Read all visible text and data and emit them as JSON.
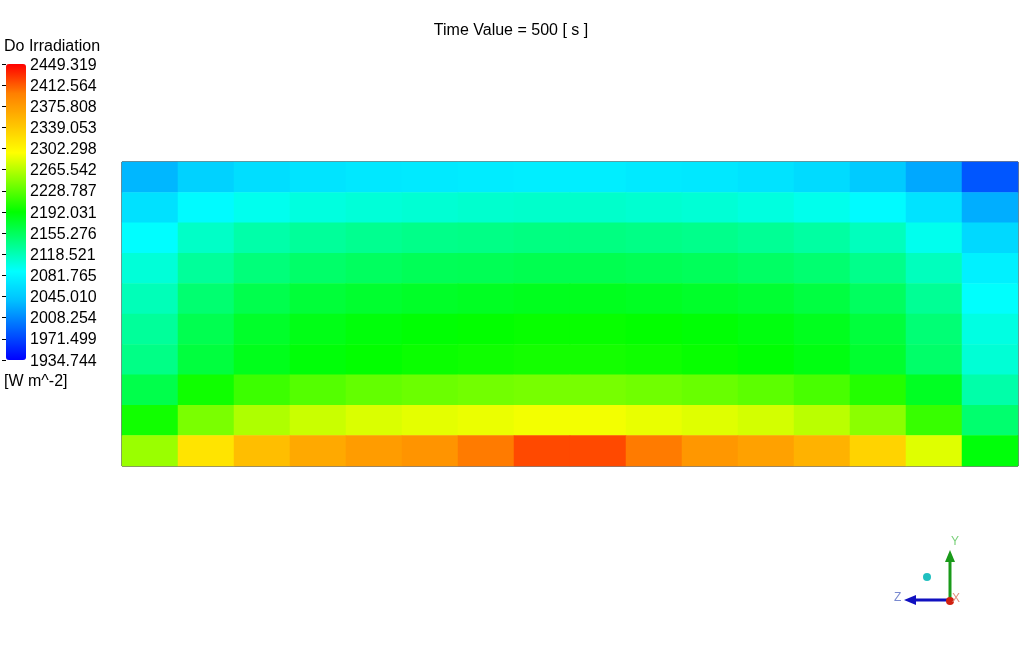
{
  "chart_data": {
    "type": "heatmap",
    "title": "Time Value = 500 [ s ]",
    "clabel": "Do Irradiation",
    "annotations": [
      "[W m^-2]",
      "Y",
      "Z",
      "X"
    ],
    "grid": false,
    "categories": [
      null,
      null,
      null,
      null,
      null,
      null,
      null,
      null,
      null,
      null,
      null,
      null,
      null,
      null,
      null,
      null
    ],
    "y_categories": [
      null,
      null,
      null,
      null,
      null,
      null,
      null,
      null,
      null,
      null
    ],
    "cells": [
      [
        2033,
        2052,
        2062,
        2067,
        2070,
        2072,
        2074,
        2075,
        2075,
        2072,
        2070,
        2066,
        2060,
        2047,
        2025,
        1981
      ],
      [
        2065,
        2086,
        2096,
        2102,
        2105,
        2107,
        2109,
        2110,
        2110,
        2108,
        2106,
        2102,
        2097,
        2086,
        2066,
        2028
      ],
      [
        2088,
        2112,
        2124,
        2130,
        2134,
        2137,
        2138,
        2140,
        2140,
        2138,
        2136,
        2132,
        2127,
        2116,
        2096,
        2058
      ],
      [
        2105,
        2130,
        2143,
        2150,
        2154,
        2157,
        2158,
        2160,
        2160,
        2158,
        2156,
        2152,
        2147,
        2136,
        2116,
        2078
      ],
      [
        2118,
        2147,
        2161,
        2169,
        2173,
        2176,
        2178,
        2180,
        2180,
        2178,
        2175,
        2172,
        2166,
        2154,
        2132,
        2090
      ],
      [
        2130,
        2160,
        2175,
        2183,
        2188,
        2191,
        2193,
        2195,
        2195,
        2193,
        2190,
        2186,
        2180,
        2168,
        2145,
        2101
      ],
      [
        2138,
        2167,
        2181,
        2189,
        2193,
        2196,
        2198,
        2200,
        2200,
        2198,
        2195,
        2191,
        2185,
        2173,
        2150,
        2106
      ],
      [
        2162,
        2198,
        2216,
        2226,
        2232,
        2235,
        2238,
        2240,
        2240,
        2237,
        2234,
        2229,
        2221,
        2206,
        2178,
        2124
      ],
      [
        2199,
        2241,
        2262,
        2273,
        2280,
        2284,
        2287,
        2290,
        2290,
        2286,
        2282,
        2277,
        2267,
        2248,
        2214,
        2148
      ],
      [
        2254,
        2317,
        2348,
        2365,
        2375,
        2382,
        2400,
        2420,
        2420,
        2400,
        2379,
        2371,
        2358,
        2331,
        2282,
        2188
      ]
    ],
    "clim": [
      1934.744,
      2449.319
    ],
    "cticks": [
      {
        "value": 1934.744,
        "label": "1934.744"
      },
      {
        "value": 1971.499,
        "label": "1971.499"
      },
      {
        "value": 2008.254,
        "label": "2008.254"
      },
      {
        "value": 2045.01,
        "label": "2045.010"
      },
      {
        "value": 2081.765,
        "label": "2081.765"
      },
      {
        "value": 2118.521,
        "label": "2118.521"
      },
      {
        "value": 2155.276,
        "label": "2155.276"
      },
      {
        "value": 2192.031,
        "label": "2192.031"
      },
      {
        "value": 2228.787,
        "label": "2228.787"
      },
      {
        "value": 2265.542,
        "label": "2265.542"
      },
      {
        "value": 2302.298,
        "label": "2302.298"
      },
      {
        "value": 2339.053,
        "label": "2339.053"
      },
      {
        "value": 2375.808,
        "label": "2375.808"
      },
      {
        "value": 2412.564,
        "label": "2412.564"
      },
      {
        "value": 2449.319,
        "label": "2449.319"
      }
    ]
  }
}
